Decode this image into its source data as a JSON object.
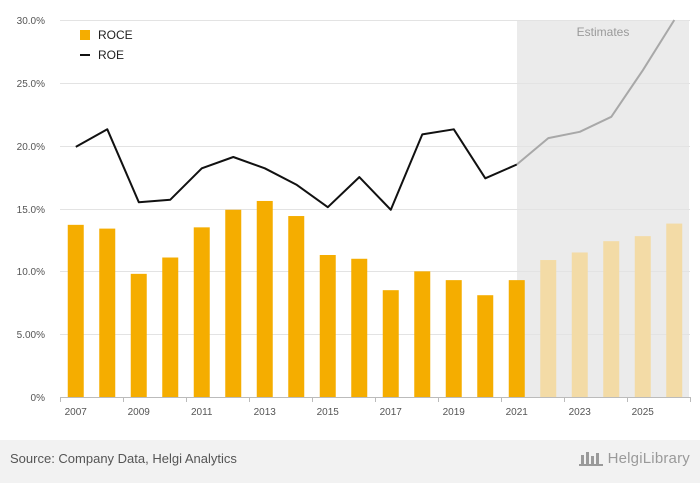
{
  "chart_data": {
    "type": "bar",
    "categories": [
      "2007",
      "2008",
      "2009",
      "2010",
      "2011",
      "2012",
      "2013",
      "2014",
      "2015",
      "2016",
      "2017",
      "2018",
      "2019",
      "2020",
      "2021",
      "2022",
      "2023",
      "2024",
      "2025",
      "2026"
    ],
    "x_tick_labels": [
      "2007",
      "2009",
      "2011",
      "2013",
      "2015",
      "2017",
      "2019",
      "2021",
      "2023",
      "2025"
    ],
    "series": [
      {
        "name": "ROCE",
        "kind": "bar",
        "color": "#f5ad00",
        "estimate_color": "#f3dba6",
        "values": [
          13.7,
          13.4,
          9.8,
          11.1,
          13.5,
          14.9,
          15.6,
          14.4,
          11.3,
          11.0,
          8.5,
          10.0,
          9.3,
          8.1,
          9.3,
          10.9,
          11.5,
          12.4,
          12.8,
          13.8
        ]
      },
      {
        "name": "ROE",
        "kind": "line",
        "color": "#111111",
        "estimate_color": "#a8a8a8",
        "values": [
          19.9,
          21.3,
          15.5,
          15.7,
          18.2,
          19.1,
          18.2,
          16.9,
          15.1,
          17.5,
          14.9,
          20.9,
          21.3,
          17.4,
          18.5,
          20.6,
          21.1,
          22.3,
          26.0,
          30.0
        ]
      }
    ],
    "estimates_start": "2022",
    "estimates_label": "Estimates",
    "ylim": [
      0,
      30
    ],
    "y_ticks": [
      0,
      5,
      10,
      15,
      20,
      25,
      30
    ],
    "y_tick_labels": [
      "0%",
      "5.00%",
      "10.0%",
      "15.0%",
      "20.0%",
      "25.0%",
      "30.0%"
    ],
    "legend": [
      "ROCE",
      "ROE"
    ],
    "legend_position": "top-left",
    "title": "",
    "xlabel": "",
    "ylabel": "",
    "grid": true
  },
  "footer": {
    "source": "Source: Company Data, Helgi Analytics",
    "brand": "HelgiLibrary"
  }
}
